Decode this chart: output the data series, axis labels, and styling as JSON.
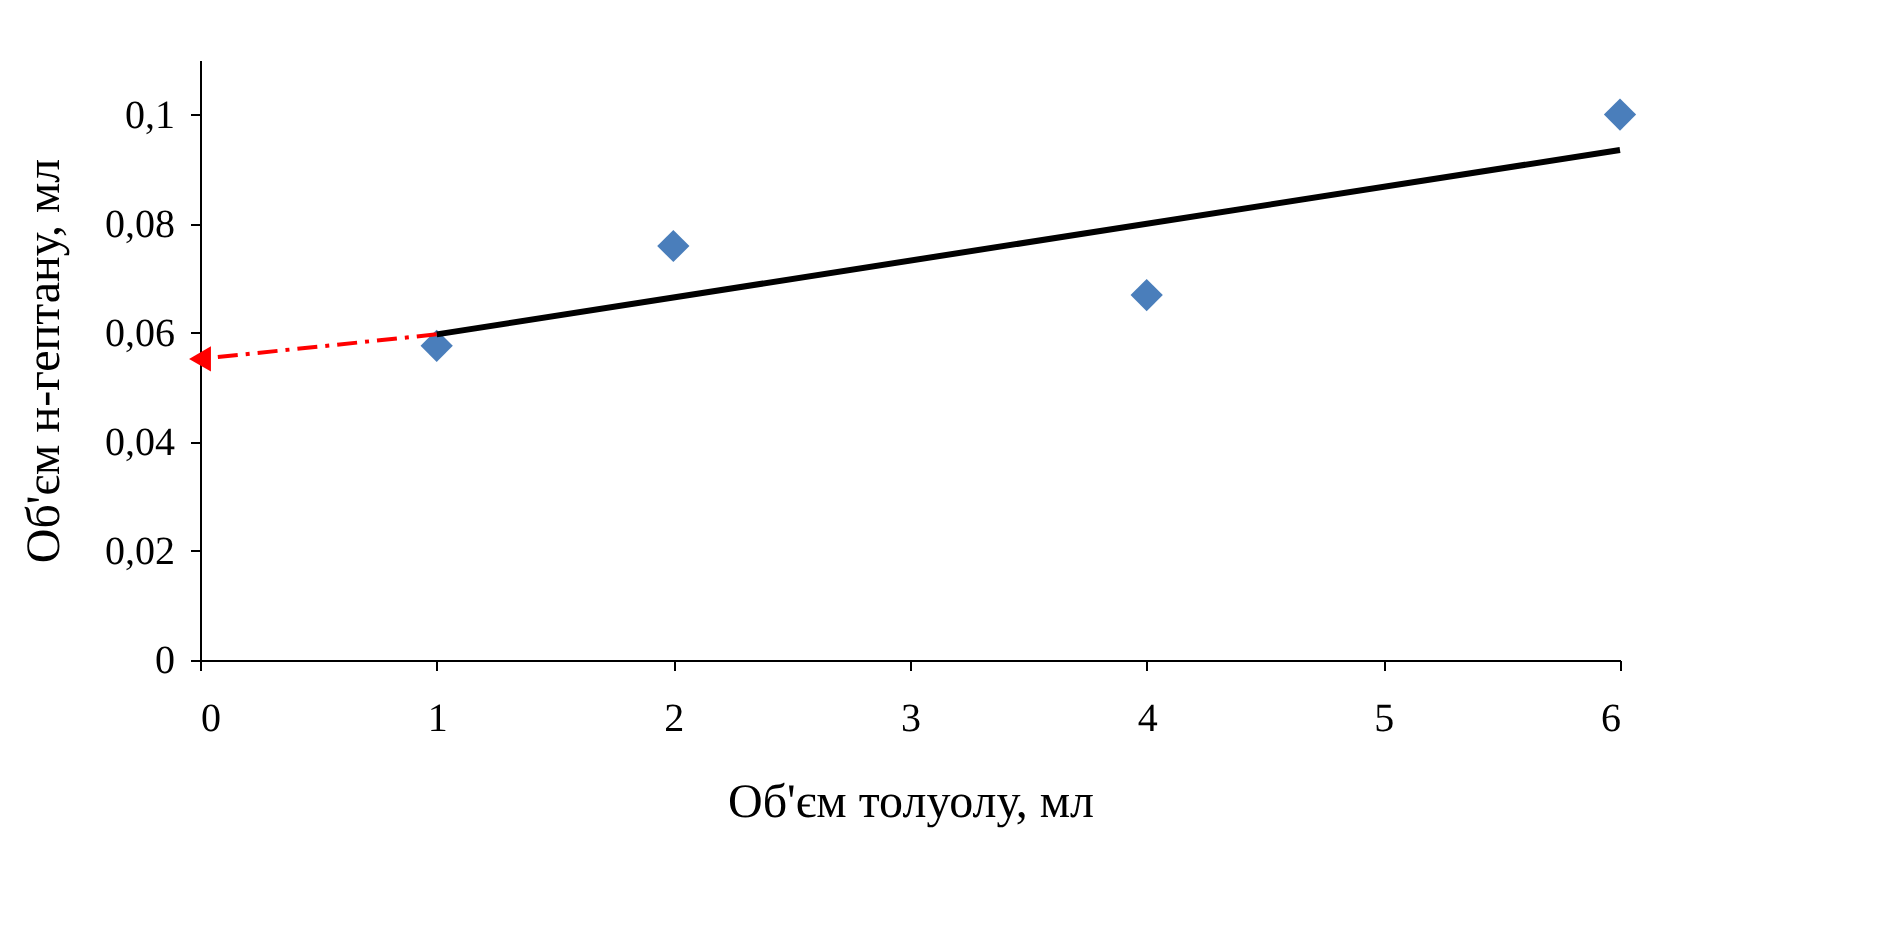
{
  "chart_data": {
    "type": "scatter",
    "xlabel": "Об'єм толуолу, мл",
    "ylabel": "Об'єм н-гептану, мл",
    "xlim": [
      0,
      6
    ],
    "xticks": [
      0,
      1,
      2,
      3,
      4,
      5,
      6
    ],
    "ylim": [
      0,
      0.11
    ],
    "yticks": [
      0,
      {
        "value": 0.02,
        "label": "0,02"
      },
      {
        "value": 0.04,
        "label": "0,04"
      },
      {
        "value": 0.06,
        "label": "0,06"
      },
      {
        "value": 0.08,
        "label": "0,08"
      },
      {
        "value": 0.1,
        "label": "0,1"
      }
    ],
    "grid": false,
    "series": [
      {
        "marker": "diamond",
        "color": "#4a7ebb",
        "x": [
          1,
          2,
          4,
          6
        ],
        "values": [
          0.0576,
          0.0759,
          0.0669,
          0.1
        ]
      },
      {
        "type": "line",
        "line_style": "solid",
        "color": "#000000",
        "x": [
          1,
          6
        ],
        "values": [
          0.0597,
          0.0935
        ]
      },
      {
        "type": "line",
        "line_style": "dashed",
        "marker": "triangle",
        "color": "#ff0000",
        "x": [
          1,
          0
        ],
        "values": [
          0.0597,
          0.0552
        ]
      }
    ]
  }
}
